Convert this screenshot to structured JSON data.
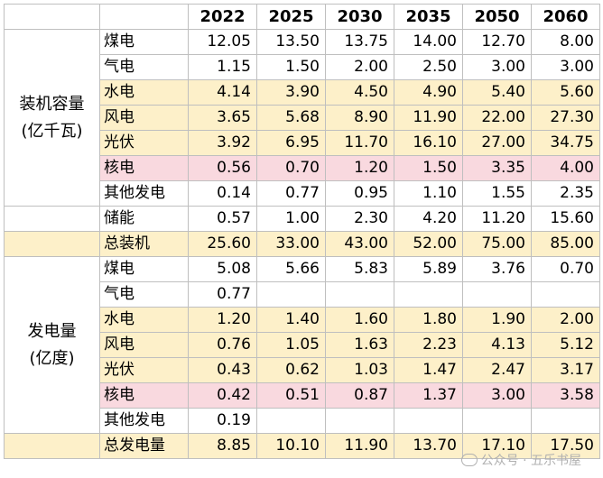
{
  "years": [
    "2022",
    "2025",
    "2030",
    "2035",
    "2050",
    "2060"
  ],
  "groups": {
    "capacity": "装机容量\n(亿千瓦)",
    "generation": "发电量\n(亿度)"
  },
  "rows": {
    "cap_coal": {
      "label": "煤电",
      "values": [
        "12.05",
        "13.50",
        "13.75",
        "14.00",
        "12.70",
        "8.00"
      ]
    },
    "cap_gas": {
      "label": "气电",
      "values": [
        "1.15",
        "1.50",
        "2.00",
        "2.50",
        "3.00",
        "3.00"
      ]
    },
    "cap_hydro": {
      "label": "水电",
      "values": [
        "4.14",
        "3.90",
        "4.50",
        "4.90",
        "5.40",
        "5.60"
      ]
    },
    "cap_wind": {
      "label": "风电",
      "values": [
        "3.65",
        "5.68",
        "8.90",
        "11.90",
        "22.00",
        "27.30"
      ]
    },
    "cap_solar": {
      "label": "光伏",
      "values": [
        "3.92",
        "6.95",
        "11.70",
        "16.10",
        "27.00",
        "34.75"
      ]
    },
    "cap_nuclear": {
      "label": "核电",
      "values": [
        "0.56",
        "0.70",
        "1.20",
        "1.50",
        "3.35",
        "4.00"
      ]
    },
    "cap_other": {
      "label": "其他发电",
      "values": [
        "0.14",
        "0.77",
        "0.95",
        "1.10",
        "1.55",
        "2.35"
      ]
    },
    "storage": {
      "label": "储能",
      "values": [
        "0.57",
        "1.00",
        "2.30",
        "4.20",
        "11.20",
        "15.60"
      ]
    },
    "cap_total": {
      "label": "总装机",
      "values": [
        "25.60",
        "33.00",
        "43.00",
        "52.00",
        "75.00",
        "85.00"
      ]
    },
    "gen_coal": {
      "label": "煤电",
      "values": [
        "5.08",
        "5.66",
        "5.83",
        "5.89",
        "3.76",
        "0.70"
      ]
    },
    "gen_gas": {
      "label": "气电",
      "values": [
        "0.77",
        "",
        "",
        "",
        "",
        ""
      ]
    },
    "gen_hydro": {
      "label": "水电",
      "values": [
        "1.20",
        "1.40",
        "1.60",
        "1.80",
        "1.90",
        "2.00"
      ]
    },
    "gen_wind": {
      "label": "风电",
      "values": [
        "0.76",
        "1.05",
        "1.63",
        "2.23",
        "4.13",
        "5.12"
      ]
    },
    "gen_solar": {
      "label": "光伏",
      "values": [
        "0.43",
        "0.62",
        "1.03",
        "1.47",
        "2.47",
        "3.17"
      ]
    },
    "gen_nuclear": {
      "label": "核电",
      "values": [
        "0.42",
        "0.51",
        "0.87",
        "1.37",
        "3.00",
        "3.58"
      ]
    },
    "gen_other": {
      "label": "其他发电",
      "values": [
        "0.19",
        "",
        "",
        "",
        "",
        ""
      ]
    },
    "gen_total": {
      "label": "总发电量",
      "values": [
        "8.85",
        "10.10",
        "11.90",
        "13.70",
        "17.10",
        "17.50"
      ]
    }
  },
  "watermark": "公众号 · 五乐书屋"
}
